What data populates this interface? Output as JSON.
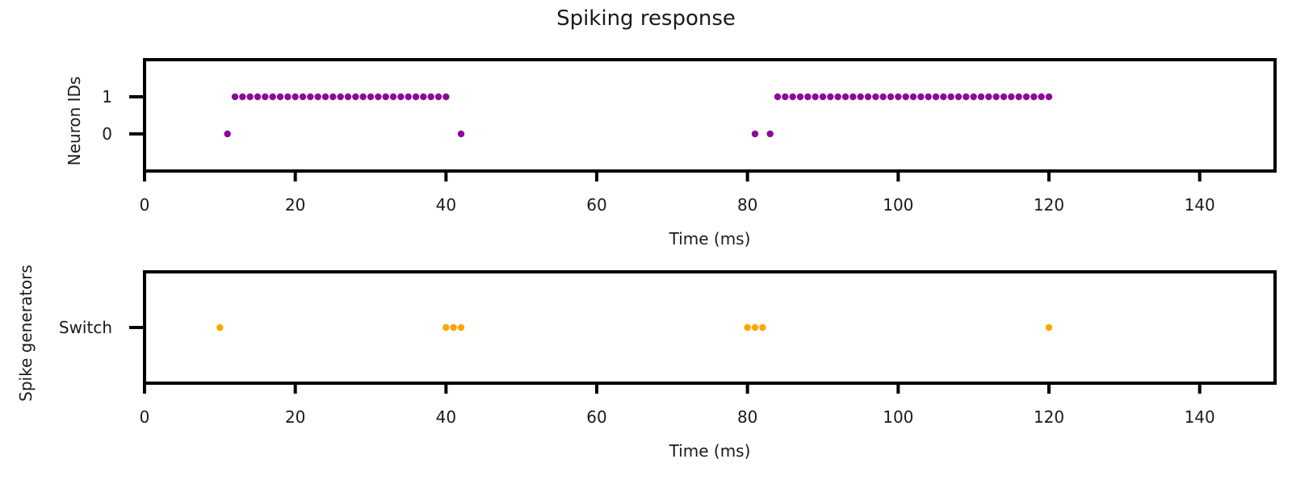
{
  "figure": {
    "title": "Spiking response"
  },
  "chart_data": [
    {
      "type": "scatter",
      "panel": "top",
      "xlabel": "Time (ms)",
      "ylabel": "Neuron IDs",
      "xlim": [
        0,
        150
      ],
      "ylim": [
        -1,
        2
      ],
      "xticks": [
        0,
        20,
        40,
        60,
        80,
        100,
        120,
        140
      ],
      "yticks": [
        0,
        1
      ],
      "ytick_labels": [
        "0",
        "1"
      ],
      "grid": false,
      "color": "#8b0a9b",
      "series": [
        {
          "points": [
            [
              11,
              0
            ],
            [
              42,
              0
            ],
            [
              81,
              0
            ],
            [
              83,
              0
            ],
            [
              12,
              1
            ],
            [
              13,
              1
            ],
            [
              14,
              1
            ],
            [
              15,
              1
            ],
            [
              16,
              1
            ],
            [
              17,
              1
            ],
            [
              18,
              1
            ],
            [
              19,
              1
            ],
            [
              20,
              1
            ],
            [
              21,
              1
            ],
            [
              22,
              1
            ],
            [
              23,
              1
            ],
            [
              24,
              1
            ],
            [
              25,
              1
            ],
            [
              26,
              1
            ],
            [
              27,
              1
            ],
            [
              28,
              1
            ],
            [
              29,
              1
            ],
            [
              30,
              1
            ],
            [
              31,
              1
            ],
            [
              32,
              1
            ],
            [
              33,
              1
            ],
            [
              34,
              1
            ],
            [
              35,
              1
            ],
            [
              36,
              1
            ],
            [
              37,
              1
            ],
            [
              38,
              1
            ],
            [
              39,
              1
            ],
            [
              40,
              1
            ],
            [
              84,
              1
            ],
            [
              85,
              1
            ],
            [
              86,
              1
            ],
            [
              87,
              1
            ],
            [
              88,
              1
            ],
            [
              89,
              1
            ],
            [
              90,
              1
            ],
            [
              91,
              1
            ],
            [
              92,
              1
            ],
            [
              93,
              1
            ],
            [
              94,
              1
            ],
            [
              95,
              1
            ],
            [
              96,
              1
            ],
            [
              97,
              1
            ],
            [
              98,
              1
            ],
            [
              99,
              1
            ],
            [
              100,
              1
            ],
            [
              101,
              1
            ],
            [
              102,
              1
            ],
            [
              103,
              1
            ],
            [
              104,
              1
            ],
            [
              105,
              1
            ],
            [
              106,
              1
            ],
            [
              107,
              1
            ],
            [
              108,
              1
            ],
            [
              109,
              1
            ],
            [
              110,
              1
            ],
            [
              111,
              1
            ],
            [
              112,
              1
            ],
            [
              113,
              1
            ],
            [
              114,
              1
            ],
            [
              115,
              1
            ],
            [
              116,
              1
            ],
            [
              117,
              1
            ],
            [
              118,
              1
            ],
            [
              119,
              1
            ],
            [
              120,
              1
            ]
          ]
        }
      ]
    },
    {
      "type": "scatter",
      "panel": "bottom",
      "xlabel": "Time (ms)",
      "ylabel": "Spike generators",
      "xlim": [
        0,
        150
      ],
      "ylim": [
        -1,
        1
      ],
      "xticks": [
        0,
        20,
        40,
        60,
        80,
        100,
        120,
        140
      ],
      "yticks": [
        0
      ],
      "ytick_labels": [
        "Switch"
      ],
      "grid": false,
      "color": "#ffa500",
      "series": [
        {
          "points": [
            [
              10,
              0
            ],
            [
              40,
              0
            ],
            [
              41,
              0
            ],
            [
              42,
              0
            ],
            [
              80,
              0
            ],
            [
              81,
              0
            ],
            [
              82,
              0
            ],
            [
              120,
              0
            ]
          ]
        }
      ]
    }
  ]
}
